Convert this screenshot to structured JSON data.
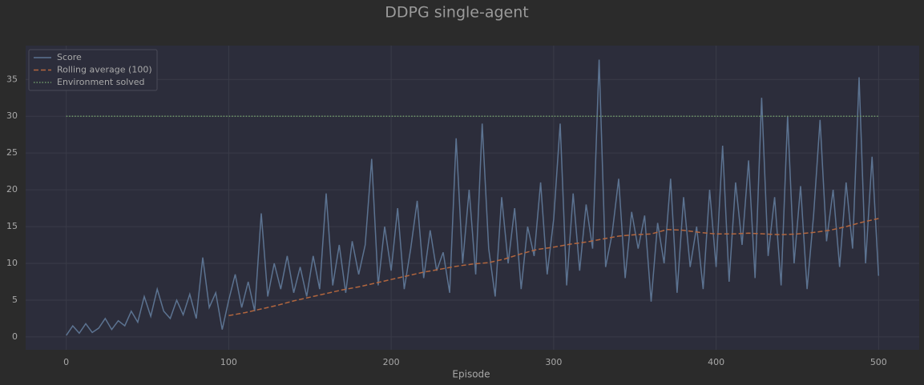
{
  "chart_data": {
    "type": "line",
    "title": "DDPG single-agent",
    "x_label": "Episode",
    "xlim": [
      -25,
      525
    ],
    "ylim": [
      -1.75,
      39.6
    ],
    "xticks": [
      0,
      100,
      200,
      300,
      400,
      500
    ],
    "yticks": [
      0,
      5,
      10,
      15,
      20,
      25,
      30,
      35
    ],
    "grid": true,
    "legend": "upper left",
    "series": [
      {
        "name": "Score",
        "color": "#5c7391",
        "linestyle": "solid",
        "x": [
          0,
          4,
          8,
          12,
          16,
          20,
          24,
          28,
          32,
          36,
          40,
          44,
          48,
          52,
          56,
          60,
          64,
          68,
          72,
          76,
          80,
          84,
          88,
          92,
          96,
          100,
          104,
          108,
          112,
          116,
          120,
          124,
          128,
          132,
          136,
          140,
          144,
          148,
          152,
          156,
          160,
          164,
          168,
          172,
          176,
          180,
          184,
          188,
          192,
          196,
          200,
          204,
          208,
          212,
          216,
          220,
          224,
          228,
          232,
          236,
          240,
          244,
          248,
          252,
          256,
          260,
          264,
          268,
          272,
          276,
          280,
          284,
          288,
          292,
          296,
          300,
          304,
          308,
          312,
          316,
          320,
          324,
          328,
          332,
          336,
          340,
          344,
          348,
          352,
          356,
          360,
          364,
          368,
          372,
          376,
          380,
          384,
          388,
          392,
          396,
          400,
          404,
          408,
          412,
          416,
          420,
          424,
          428,
          432,
          436,
          440,
          444,
          448,
          452,
          456,
          460,
          464,
          468,
          472,
          476,
          480,
          484,
          488,
          492,
          496,
          500
        ],
        "values": [
          0.2,
          1.5,
          0.5,
          1.8,
          0.6,
          1.2,
          2.5,
          1.0,
          2.2,
          1.5,
          3.5,
          2.0,
          5.5,
          2.8,
          6.5,
          3.5,
          2.5,
          5.0,
          3.0,
          5.8,
          2.5,
          10.8,
          4.0,
          6.0,
          1.0,
          5.0,
          8.5,
          4.0,
          7.5,
          3.5,
          16.8,
          5.5,
          10.0,
          6.5,
          11.0,
          6.0,
          9.5,
          5.5,
          11.0,
          6.5,
          19.5,
          7.0,
          12.5,
          6.0,
          13.0,
          8.5,
          12.5,
          24.2,
          7.0,
          15.0,
          9.0,
          17.5,
          6.5,
          12.0,
          18.5,
          8.0,
          14.5,
          9.0,
          11.5,
          6.0,
          27.0,
          10.0,
          20.0,
          8.5,
          29.0,
          12.0,
          5.5,
          19.0,
          10.0,
          17.5,
          6.5,
          15.0,
          11.0,
          21.0,
          8.5,
          16.0,
          29.0,
          7.0,
          19.5,
          9.0,
          18.0,
          12.0,
          37.7,
          9.5,
          14.0,
          21.5,
          8.0,
          17.0,
          12.0,
          16.5,
          4.8,
          15.5,
          10.0,
          21.5,
          6.0,
          19.0,
          9.5,
          15.0,
          6.5,
          20.0,
          9.5,
          26.0,
          7.5,
          21.0,
          12.5,
          24.0,
          8.0,
          32.5,
          11.0,
          19.0,
          7.0,
          30.0,
          10.0,
          20.5,
          6.5,
          16.5,
          29.5,
          13.0,
          20.0,
          9.5,
          21.0,
          12.0,
          35.3,
          10.0,
          24.5,
          8.3
        ]
      },
      {
        "name": "Rolling average (100)",
        "color": "#b2663e",
        "linestyle": "dashed",
        "x": [
          100,
          110,
          120,
          130,
          140,
          150,
          160,
          170,
          180,
          190,
          200,
          210,
          220,
          230,
          240,
          250,
          260,
          270,
          280,
          290,
          300,
          310,
          320,
          330,
          340,
          350,
          360,
          370,
          380,
          390,
          400,
          410,
          420,
          430,
          440,
          450,
          460,
          470,
          480,
          490,
          500
        ],
        "values": [
          2.9,
          3.3,
          3.8,
          4.3,
          4.9,
          5.4,
          5.9,
          6.4,
          6.8,
          7.3,
          7.8,
          8.3,
          8.8,
          9.2,
          9.6,
          9.9,
          10.1,
          10.6,
          11.3,
          11.9,
          12.2,
          12.6,
          12.9,
          13.3,
          13.7,
          13.9,
          14.0,
          14.6,
          14.5,
          14.2,
          14.0,
          14.0,
          14.1,
          14.0,
          13.9,
          14.0,
          14.2,
          14.5,
          15.0,
          15.6,
          16.1
        ]
      },
      {
        "name": "Environment solved",
        "color": "#6f9a6a",
        "linestyle": "dotted",
        "x": [
          0,
          500
        ],
        "values": [
          30,
          30
        ]
      }
    ]
  }
}
